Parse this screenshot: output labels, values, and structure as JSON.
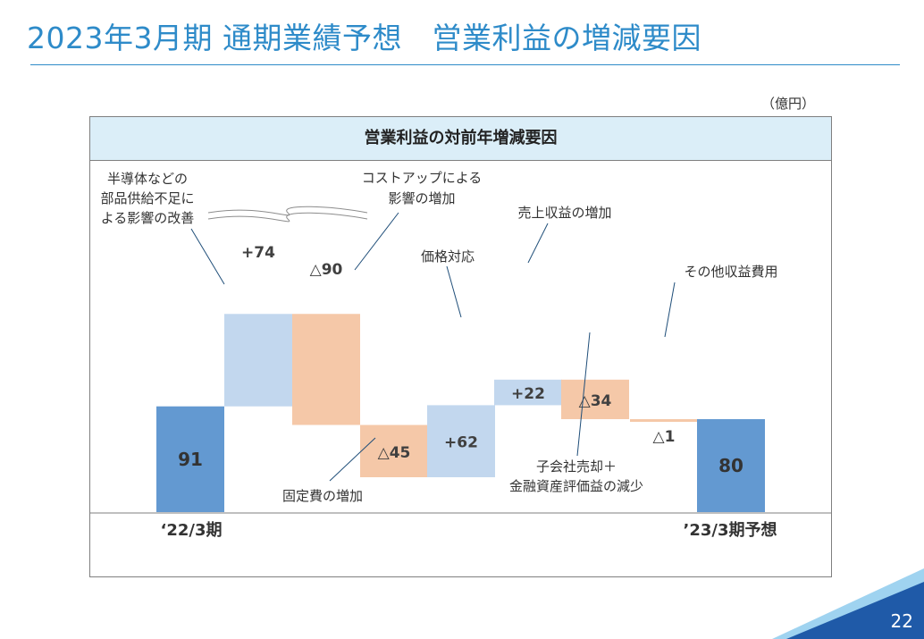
{
  "slide": {
    "title": "2023年3月期 通期業績予想　営業利益の増減要因",
    "unit": "（億円）",
    "page_number": "22"
  },
  "chart_data": {
    "type": "waterfall",
    "title": "営業利益の対前年増減要因",
    "steps": [
      {
        "label": "‘22/3期",
        "value": 91,
        "display": "91",
        "kind": "total",
        "color": "#6399d1"
      },
      {
        "annotation": "半導体などの\n部品供給不足に\nよる影響の改善",
        "value": 74,
        "display": "+74",
        "kind": "increase",
        "color": "#c2d7ee",
        "broken": true
      },
      {
        "annotation": "コストアップによる\n影響の増加",
        "value": -90,
        "display": "△90",
        "kind": "decrease",
        "color": "#f5c8a8",
        "broken": true
      },
      {
        "annotation": "固定費の増加",
        "value": -45,
        "display": "△45",
        "kind": "decrease",
        "color": "#f5c8a8"
      },
      {
        "annotation": "価格対応",
        "value": 62,
        "display": "+62",
        "kind": "increase",
        "color": "#c2d7ee"
      },
      {
        "annotation": "売上収益の増加",
        "value": 22,
        "display": "+22",
        "kind": "increase",
        "color": "#c2d7ee"
      },
      {
        "annotation": "子会社売却＋\n金融資産評価益の減少",
        "value": -34,
        "display": "△34",
        "kind": "decrease",
        "color": "#f5c8a8"
      },
      {
        "annotation": "その他収益費用",
        "value": -1,
        "display": "△1",
        "kind": "decrease",
        "color": "#f5c8a8"
      },
      {
        "label": "’23/3期予想",
        "value": 80,
        "display": "80",
        "kind": "total",
        "color": "#6399d1"
      }
    ]
  }
}
